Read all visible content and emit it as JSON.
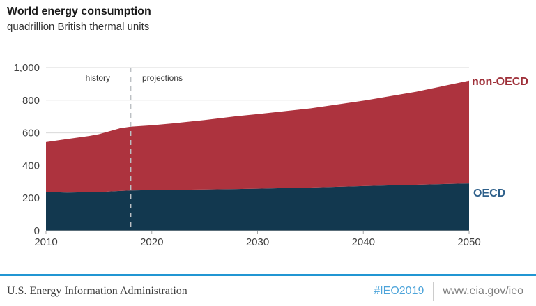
{
  "header": {
    "title": "World energy consumption",
    "subtitle": "quadrillion British thermal units"
  },
  "chart_data": {
    "type": "area",
    "stacked": true,
    "title": "World energy consumption",
    "ylabel": "quadrillion British thermal units",
    "x": [
      2010,
      2012,
      2014,
      2015,
      2016,
      2017,
      2018,
      2019,
      2020,
      2022,
      2025,
      2028,
      2030,
      2035,
      2040,
      2045,
      2050
    ],
    "series": [
      {
        "name": "OECD",
        "color": "#12384f",
        "label_color": "#2d5f8a",
        "values": [
          237,
          234,
          236,
          236,
          241,
          244,
          247,
          248,
          249,
          251,
          253,
          256,
          258,
          265,
          274,
          282,
          290
        ]
      },
      {
        "name": "non-OECD",
        "color": "#ad333e",
        "label_color": "#9e2f38",
        "values": [
          306,
          328,
          344,
          356,
          369,
          384,
          391,
          394,
          397,
          407,
          425,
          446,
          457,
          485,
          523,
          570,
          630
        ]
      }
    ],
    "xlim": [
      2010,
      2050
    ],
    "ylim": [
      0,
      1000
    ],
    "xticks": {
      "values": [
        2010,
        2020,
        2030,
        2040,
        2050
      ],
      "labels": [
        "2010",
        "2020",
        "2030",
        "2040",
        "2050"
      ]
    },
    "yticks": {
      "values": [
        0,
        200,
        400,
        600,
        800,
        1000
      ],
      "labels": [
        "0",
        "200",
        "400",
        "600",
        "800",
        "1,000"
      ]
    },
    "grid": "horizontal",
    "legend_position": "right-of-area-ends",
    "annotations": {
      "divider_year": 2018,
      "history_label": "history",
      "projections_label": "projections"
    },
    "colors": {
      "gridline": "#d9d9d9",
      "axis": "#a6a6a6",
      "divider_line": "#bcc0c4",
      "tick_text": "#404040"
    }
  },
  "footer": {
    "org": "U.S. Energy Information Administration",
    "hashtag": "#IEO2019",
    "url": "www.eia.gov/ieo",
    "accent_color": "#2196d3",
    "hashtag_color": "#4da4da"
  }
}
